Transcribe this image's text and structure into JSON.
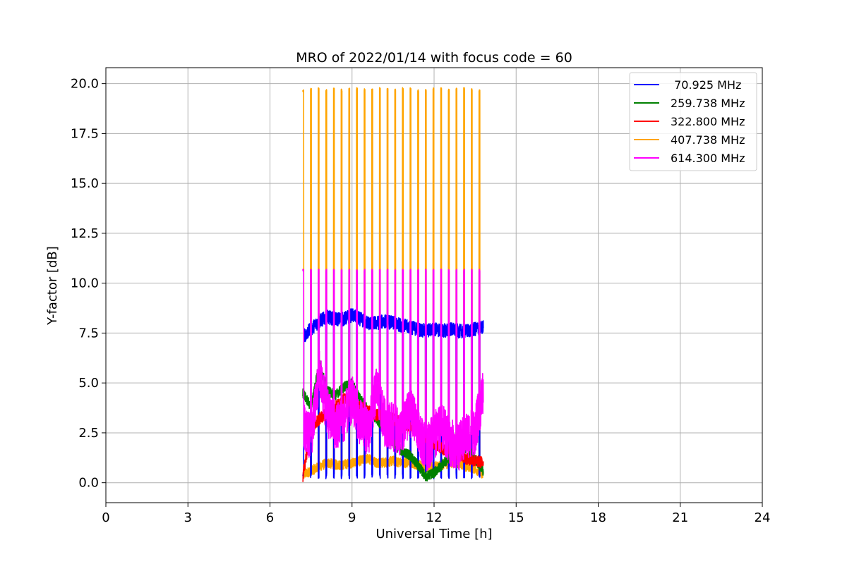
{
  "chart_data": {
    "type": "line",
    "title": "MRO of 2022/01/14 with focus code = 60",
    "xlabel": "Universal Time [h]",
    "ylabel": "Y-factor [dB]",
    "xlim": [
      0,
      24
    ],
    "ylim": [
      -1.0,
      20.8
    ],
    "xticks": [
      0,
      3,
      6,
      9,
      12,
      15,
      18,
      21,
      24
    ],
    "xtick_labels": [
      "0",
      "3",
      "6",
      "9",
      "12",
      "15",
      "18",
      "21",
      "24"
    ],
    "yticks": [
      0.0,
      2.5,
      5.0,
      7.5,
      10.0,
      12.5,
      15.0,
      17.5,
      20.0
    ],
    "ytick_labels": [
      "0.0",
      "2.5",
      "5.0",
      "7.5",
      "10.0",
      "12.5",
      "15.0",
      "17.5",
      "20.0"
    ],
    "grid": true,
    "legend_position": "top-right",
    "series": [
      {
        "name": " 70.925 MHz",
        "color": "#0000ff",
        "x": [
          7.2,
          7.5,
          7.8,
          8.1,
          8.4,
          8.7,
          9.0,
          9.3,
          9.6,
          9.9,
          10.2,
          10.5,
          10.8,
          11.1,
          11.4,
          11.7,
          12.0,
          12.3,
          12.6,
          12.9,
          13.2,
          13.5,
          13.8
        ],
        "values": [
          7.3,
          7.7,
          8.1,
          8.3,
          8.2,
          8.2,
          8.4,
          8.2,
          8.0,
          8.0,
          8.1,
          8.0,
          7.9,
          7.8,
          7.7,
          7.6,
          7.7,
          7.6,
          7.7,
          7.6,
          7.6,
          7.7,
          7.8
        ],
        "dip_values": [
          0.2,
          0.2,
          0.2,
          0.2,
          0.2,
          0.2,
          0.2,
          0.2,
          0.2,
          0.2,
          0.2,
          0.2,
          0.2,
          0.2,
          0.2,
          0.2,
          0.2,
          0.2,
          0.2,
          0.2,
          0.2,
          0.2,
          0.2
        ]
      },
      {
        "name": "259.738 MHz",
        "color": "#008000",
        "x": [
          7.2,
          7.5,
          7.8,
          8.1,
          8.4,
          8.7,
          9.0,
          9.3,
          9.6,
          9.9,
          10.2,
          10.5,
          10.8,
          11.1,
          11.4,
          11.7,
          12.0,
          12.3,
          12.6,
          12.9,
          13.2,
          13.5,
          13.8
        ],
        "values": [
          4.5,
          3.8,
          6.0,
          4.6,
          4.4,
          4.8,
          5.0,
          4.2,
          3.6,
          3.2,
          2.6,
          2.0,
          1.6,
          1.4,
          0.9,
          0.3,
          0.5,
          0.9,
          1.3,
          1.5,
          1.8,
          1.2,
          0.6
        ]
      },
      {
        "name": "322.800 MHz",
        "color": "#ff0000",
        "x": [
          7.2,
          7.5,
          7.8,
          8.1,
          8.4,
          8.7,
          9.0,
          9.3,
          9.6,
          9.9,
          10.2,
          10.5,
          10.8,
          11.1,
          11.4,
          11.7,
          12.0,
          12.3,
          12.6,
          12.9,
          13.2,
          13.5,
          13.8
        ],
        "values": [
          0.3,
          2.7,
          3.2,
          3.5,
          3.8,
          4.2,
          4.0,
          3.8,
          3.6,
          3.4,
          3.3,
          3.2,
          3.0,
          2.8,
          2.6,
          2.3,
          2.0,
          1.7,
          1.6,
          1.4,
          1.2,
          1.1,
          1.0
        ]
      },
      {
        "name": "407.738 MHz",
        "color": "#ffa500",
        "x": [
          7.2,
          7.5,
          7.8,
          8.1,
          8.4,
          8.7,
          9.0,
          9.3,
          9.6,
          9.9,
          10.2,
          10.5,
          10.8,
          11.1,
          11.4,
          11.7,
          12.0,
          12.3,
          12.6,
          12.9,
          13.2,
          13.5,
          13.8
        ],
        "values": [
          0.4,
          0.6,
          0.8,
          1.0,
          0.9,
          0.9,
          1.0,
          1.1,
          1.2,
          1.0,
          1.0,
          1.1,
          1.0,
          1.0,
          0.9,
          0.8,
          0.8,
          0.9,
          1.0,
          1.0,
          0.8,
          0.7,
          0.4
        ],
        "spike_values": [
          19.7,
          19.8,
          19.8,
          19.7,
          19.8,
          19.7,
          19.8,
          19.8,
          19.7,
          19.8,
          19.8,
          19.7,
          19.8,
          19.8,
          19.7,
          19.7,
          19.8,
          19.8,
          19.7,
          19.8,
          19.8,
          19.7,
          19.7
        ]
      },
      {
        "name": "614.300 MHz",
        "color": "#ff00ff",
        "x": [
          7.2,
          7.5,
          7.8,
          8.1,
          8.4,
          8.7,
          9.0,
          9.3,
          9.6,
          9.9,
          10.2,
          10.5,
          10.8,
          11.1,
          11.4,
          11.7,
          12.0,
          12.3,
          12.6,
          12.9,
          13.2,
          13.5,
          13.8
        ],
        "values": [
          3.0,
          2.2,
          5.5,
          3.5,
          2.8,
          3.2,
          4.2,
          3.0,
          2.5,
          4.8,
          3.0,
          2.8,
          2.4,
          3.6,
          2.8,
          1.6,
          2.4,
          2.8,
          2.0,
          1.8,
          2.4,
          2.6,
          4.6
        ],
        "spike_values": [
          10.7,
          10.7,
          10.7,
          10.7,
          10.7,
          10.7,
          10.7,
          10.7,
          10.7,
          10.7,
          10.7,
          10.7,
          10.7,
          10.7,
          10.7,
          10.7,
          10.7,
          10.7,
          10.7,
          10.7,
          10.7,
          10.7,
          10.7
        ]
      }
    ]
  }
}
